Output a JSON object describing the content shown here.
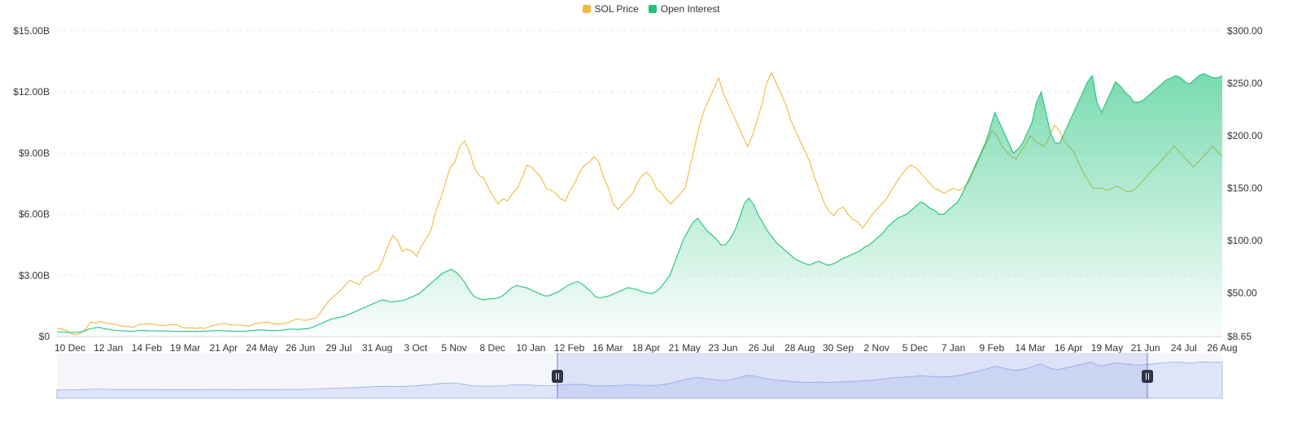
{
  "legend": {
    "items": [
      {
        "label": "SOL Price",
        "color": "#F0B93B"
      },
      {
        "label": "Open Interest",
        "color": "#20C27C"
      }
    ]
  },
  "chart_data": {
    "type": "line",
    "title": "",
    "legend_position": "top-center",
    "grid": true,
    "x_tick_labels": [
      "10 Dec",
      "12 Jan",
      "14 Feb",
      "19 Mar",
      "21 Apr",
      "24 May",
      "26 Jun",
      "29 Jul",
      "31 Aug",
      "3 Oct",
      "5 Nov",
      "8 Dec",
      "10 Jan",
      "12 Feb",
      "16 Mar",
      "18 Apr",
      "21 May",
      "23 Jun",
      "26 Jul",
      "28 Aug",
      "30 Sep",
      "2 Nov",
      "5 Dec",
      "7 Jan",
      "9 Feb",
      "14 Mar",
      "16 Apr",
      "19 May",
      "21 Jun",
      "24 Jul",
      "26 Aug"
    ],
    "y_left": {
      "tick_labels": [
        "$0",
        "$3.00B",
        "$6.00B",
        "$9.00B",
        "$12.00B",
        "$15.00B"
      ],
      "range": [
        0,
        15000000000
      ]
    },
    "y_right": {
      "tick_labels": [
        "$8.65",
        "$50.00",
        "$100.00",
        "$150.00",
        "$200.00",
        "$250.00",
        "$300.00"
      ],
      "range": [
        8.65,
        300
      ]
    },
    "series": [
      {
        "name": "SOL Price",
        "axis": "right",
        "color": "#F0B93B",
        "values": [
          16.5,
          15.8,
          14.2,
          11.0,
          10.5,
          12.0,
          16.0,
          22.5,
          21.5,
          23.0,
          22.0,
          21.0,
          20.5,
          19.0,
          18.5,
          18.0,
          17.5,
          20.0,
          20.5,
          21.0,
          20.5,
          19.5,
          19.0,
          19.5,
          20.0,
          20.0,
          17.5,
          16.8,
          17.0,
          16.5,
          17.0,
          16.5,
          18.5,
          19.5,
          20.5,
          21.0,
          20.0,
          19.5,
          19.5,
          19.0,
          18.5,
          20.5,
          21.5,
          22.0,
          22.5,
          21.0,
          20.5,
          21.0,
          21.5,
          23.5,
          25.5,
          24.5,
          24.0,
          25.5,
          26.0,
          32.0,
          38.5,
          44.0,
          48.0,
          52.0,
          57.0,
          62.0,
          60.5,
          58.0,
          65.0,
          67.0,
          70.0,
          72.0,
          82.0,
          95.0,
          105.0,
          100.0,
          90.0,
          92.0,
          90.0,
          85.0,
          95.0,
          102.0,
          110.0,
          128.0,
          140.0,
          155.0,
          170.0,
          175.0,
          190.0,
          195.0,
          185.0,
          170.0,
          162.0,
          160.0,
          150.0,
          142.0,
          135.0,
          140.0,
          138.0,
          145.0,
          150.0,
          160.0,
          172.0,
          170.0,
          165.0,
          160.0,
          150.0,
          148.0,
          145.0,
          140.0,
          138.0,
          148.0,
          155.0,
          165.0,
          172.0,
          175.0,
          180.0,
          175.0,
          160.0,
          150.0,
          135.0,
          130.0,
          135.0,
          140.0,
          145.0,
          155.0,
          162.0,
          165.0,
          160.0,
          150.0,
          146.0,
          140.0,
          135.0,
          140.0,
          145.0,
          150.0,
          170.0,
          190.0,
          210.0,
          225.0,
          235.0,
          245.0,
          255.0,
          240.0,
          230.0,
          220.0,
          210.0,
          200.0,
          190.0,
          200.0,
          215.0,
          230.0,
          250.0,
          260.0,
          250.0,
          240.0,
          230.0,
          215.0,
          205.0,
          195.0,
          185.0,
          175.0,
          160.0,
          148.0,
          136.0,
          128.0,
          124.0,
          130.0,
          132.0,
          125.0,
          120.0,
          118.0,
          112.0,
          118.0,
          125.0,
          130.0,
          135.0,
          140.0,
          148.0,
          155.0,
          162.0,
          168.0,
          172.0,
          170.0,
          165.0,
          160.0,
          155.0,
          150.0,
          148.0,
          145.0,
          148.0,
          150.0,
          148.0,
          150.0,
          155.0,
          165.0,
          175.0,
          185.0,
          195.0,
          205.0,
          200.0,
          190.0,
          185.0,
          180.0,
          178.0,
          185.0,
          192.0,
          200.0,
          195.0,
          192.0,
          190.0,
          200.0,
          210.0,
          205.0,
          195.0,
          190.0,
          185.0,
          175.0,
          165.0,
          158.0,
          150.0,
          150.0,
          150.0,
          148.0,
          150.0,
          152.0,
          150.0,
          147.0,
          147.0,
          150.0,
          155.0,
          160.0,
          165.0,
          170.0,
          175.0,
          180.0,
          185.0,
          190.0,
          185.0,
          180.0,
          175.0,
          170.0,
          175.0,
          180.0,
          185.0,
          190.0,
          185.0,
          180.0
        ]
      },
      {
        "name": "Open Interest",
        "axis": "left",
        "color": "#20C27C",
        "values": [
          0.24,
          0.22,
          0.21,
          0.2,
          0.21,
          0.22,
          0.28,
          0.38,
          0.42,
          0.45,
          0.4,
          0.36,
          0.32,
          0.3,
          0.28,
          0.27,
          0.26,
          0.28,
          0.3,
          0.29,
          0.28,
          0.28,
          0.27,
          0.27,
          0.27,
          0.26,
          0.25,
          0.25,
          0.25,
          0.25,
          0.25,
          0.26,
          0.27,
          0.28,
          0.29,
          0.29,
          0.28,
          0.27,
          0.26,
          0.26,
          0.26,
          0.27,
          0.29,
          0.31,
          0.33,
          0.31,
          0.29,
          0.29,
          0.3,
          0.33,
          0.36,
          0.36,
          0.35,
          0.37,
          0.39,
          0.45,
          0.55,
          0.65,
          0.75,
          0.85,
          0.9,
          0.95,
          1.0,
          1.1,
          1.2,
          1.3,
          1.4,
          1.5,
          1.6,
          1.7,
          1.8,
          1.75,
          1.7,
          1.72,
          1.75,
          1.8,
          1.9,
          2.0,
          2.1,
          2.3,
          2.5,
          2.7,
          2.9,
          3.1,
          3.2,
          3.3,
          3.15,
          2.9,
          2.6,
          2.2,
          1.95,
          1.85,
          1.8,
          1.85,
          1.85,
          1.9,
          2.0,
          2.2,
          2.4,
          2.5,
          2.45,
          2.4,
          2.3,
          2.2,
          2.1,
          2.0,
          2.0,
          2.1,
          2.2,
          2.35,
          2.5,
          2.6,
          2.7,
          2.6,
          2.4,
          2.2,
          1.95,
          1.9,
          1.95,
          2.0,
          2.1,
          2.2,
          2.3,
          2.4,
          2.35,
          2.3,
          2.2,
          2.15,
          2.1,
          2.2,
          2.4,
          2.7,
          3.0,
          3.6,
          4.2,
          4.8,
          5.2,
          5.6,
          5.8,
          5.5,
          5.2,
          5.0,
          4.8,
          4.5,
          4.5,
          4.8,
          5.2,
          5.8,
          6.5,
          6.8,
          6.5,
          6.0,
          5.6,
          5.2,
          4.9,
          4.6,
          4.4,
          4.2,
          4.0,
          3.8,
          3.7,
          3.6,
          3.5,
          3.6,
          3.7,
          3.6,
          3.5,
          3.55,
          3.65,
          3.8,
          3.9,
          4.0,
          4.1,
          4.2,
          4.4,
          4.5,
          4.7,
          4.9,
          5.1,
          5.4,
          5.6,
          5.8,
          5.9,
          6.0,
          6.2,
          6.4,
          6.6,
          6.5,
          6.3,
          6.2,
          6.0,
          6.0,
          6.2,
          6.4,
          6.6,
          7.0,
          7.5,
          8.0,
          8.5,
          9.0,
          9.5,
          10.2,
          11.0,
          10.5,
          10.0,
          9.5,
          9.0,
          9.2,
          9.5,
          10.0,
          10.5,
          11.5,
          12.0,
          11.0,
          10.0,
          9.5,
          9.5,
          10.0,
          10.5,
          11.0,
          11.5,
          12.0,
          12.5,
          12.8,
          11.5,
          11.0,
          11.5,
          12.0,
          12.5,
          12.3,
          12.0,
          11.8,
          11.5,
          11.5,
          11.6,
          11.8,
          12.0,
          12.2,
          12.4,
          12.6,
          12.7,
          12.8,
          12.7,
          12.5,
          12.4,
          12.6,
          12.8,
          12.9,
          12.8,
          12.7,
          12.7,
          12.8
        ]
      }
    ]
  }
}
